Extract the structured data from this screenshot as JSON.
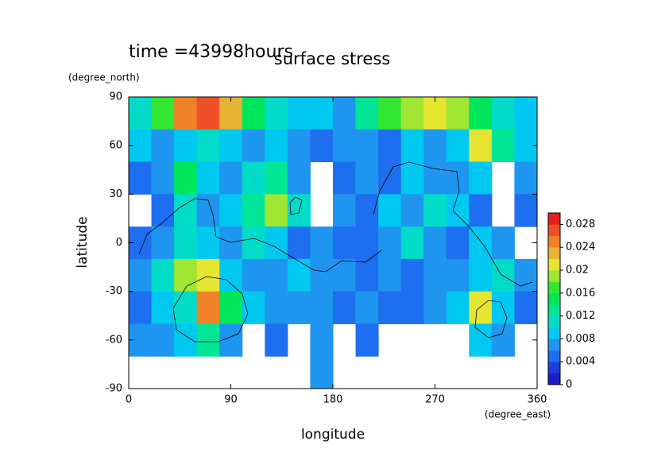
{
  "chart_data": {
    "type": "heatmap",
    "title": "surface stress",
    "annotation": "time =43998hours",
    "x_label": "longitude",
    "y_label": "latitude",
    "x_unit": "(degree_east)",
    "y_unit": "(degree_north)",
    "xlim": [
      0,
      360
    ],
    "ylim": [
      -90,
      90
    ],
    "xticks": [
      0,
      90,
      180,
      270,
      360
    ],
    "yticks": [
      90,
      60,
      30,
      0,
      -30,
      -60,
      -90
    ],
    "x": [
      10,
      30,
      50,
      70,
      90,
      110,
      130,
      150,
      170,
      190,
      210,
      230,
      250,
      270,
      290,
      310,
      330,
      350
    ],
    "y": [
      80,
      60,
      40,
      20,
      0,
      -20,
      -40,
      -60,
      -80
    ],
    "z": [
      [
        0.01,
        0.016,
        0.024,
        0.026,
        0.022,
        0.014,
        0.01,
        0.008,
        0.008,
        0.006,
        0.012,
        0.016,
        0.018,
        0.02,
        0.018,
        0.014,
        0.01,
        0.008
      ],
      [
        0.008,
        0.006,
        0.008,
        0.01,
        0.008,
        0.006,
        0.008,
        0.006,
        0.004,
        0.006,
        0.006,
        0.004,
        0.008,
        0.006,
        0.008,
        0.02,
        0.012,
        0.008
      ],
      [
        0.004,
        0.006,
        0.014,
        0.008,
        0.006,
        0.01,
        0.012,
        0.006,
        null,
        0.004,
        0.006,
        0.004,
        0.008,
        0.006,
        0.006,
        0.008,
        null,
        0.006
      ],
      [
        null,
        0.004,
        0.01,
        0.006,
        0.008,
        0.012,
        0.018,
        0.01,
        null,
        0.006,
        0.004,
        0.008,
        0.006,
        0.01,
        0.008,
        0.004,
        null,
        0.004
      ],
      [
        0.004,
        0.006,
        0.01,
        0.008,
        0.006,
        0.01,
        0.008,
        0.004,
        0.006,
        0.004,
        0.004,
        0.006,
        0.01,
        0.006,
        0.004,
        0.008,
        0.006,
        null
      ],
      [
        0.006,
        0.01,
        0.018,
        0.02,
        0.008,
        0.006,
        0.006,
        0.008,
        0.006,
        0.006,
        0.004,
        0.006,
        0.004,
        0.006,
        0.006,
        0.008,
        0.01,
        0.006
      ],
      [
        0.004,
        0.008,
        0.01,
        0.024,
        0.014,
        0.008,
        0.006,
        0.006,
        0.006,
        0.004,
        0.006,
        0.004,
        0.004,
        0.006,
        0.008,
        0.02,
        0.008,
        0.004
      ],
      [
        0.006,
        0.006,
        0.008,
        0.012,
        0.006,
        null,
        0.004,
        null,
        0.006,
        null,
        0.004,
        null,
        null,
        null,
        null,
        0.008,
        0.006,
        null
      ],
      [
        null,
        null,
        null,
        null,
        null,
        null,
        null,
        null,
        0.006,
        null,
        null,
        null,
        null,
        null,
        null,
        null,
        null,
        null
      ]
    ],
    "colorbar": {
      "levels": [
        0,
        0.002,
        0.004,
        0.006,
        0.008,
        0.01,
        0.012,
        0.014,
        0.016,
        0.018,
        0.02,
        0.022,
        0.024,
        0.026,
        0.028,
        0.03
      ],
      "colors": [
        "#1e1ec8",
        "#1e3cdc",
        "#1e6ef0",
        "#1e96f0",
        "#00c8f0",
        "#00dcc8",
        "#00e696",
        "#00e65a",
        "#32e632",
        "#a0e632",
        "#e6e632",
        "#e6b432",
        "#f08228",
        "#f05028",
        "#e61e1e"
      ],
      "ticks": [
        0,
        0.004,
        0.008,
        0.012,
        0.016,
        0.02,
        0.024,
        0.028
      ]
    }
  }
}
